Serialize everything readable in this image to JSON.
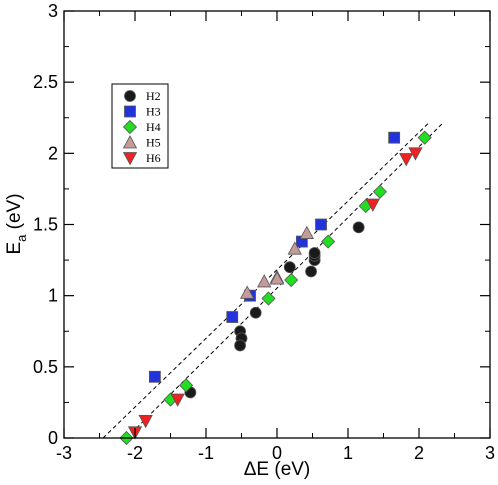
{
  "chart_data": {
    "type": "scatter",
    "xlabel": "ΔE (eV)",
    "ylabel_main": "E",
    "ylabel_sub": "a",
    "ylabel_unit": " (eV)",
    "xlim": [
      -3,
      3
    ],
    "ylim": [
      0,
      3
    ],
    "xticks": [
      -3,
      -2,
      -1,
      0,
      1,
      2,
      3
    ],
    "xtick_labels": [
      "-3",
      "-2",
      "-1",
      "0",
      "1",
      "2",
      "3"
    ],
    "yticks": [
      0,
      0.5,
      1,
      1.5,
      2,
      2.5,
      3
    ],
    "ytick_labels": [
      "0",
      "0.5",
      "1",
      "1.5",
      "2",
      "2.5",
      "3"
    ],
    "grid": false,
    "legend_position": "top-left",
    "series": [
      {
        "name": "H2",
        "marker": "circle",
        "color": "#1a1a1a",
        "x": [
          -1.22,
          -0.52,
          -0.5,
          -0.52,
          -0.3,
          0.18,
          0.48,
          0.53,
          0.53,
          0.53,
          1.15
        ],
        "y": [
          0.32,
          0.75,
          0.7,
          0.65,
          0.88,
          1.2,
          1.17,
          1.25,
          1.28,
          1.3,
          1.48
        ]
      },
      {
        "name": "H3",
        "marker": "square",
        "color": "#2233dd",
        "x": [
          -1.72,
          -0.63,
          -0.38,
          0.35,
          0.62,
          1.65
        ],
        "y": [
          0.43,
          0.85,
          1.0,
          1.38,
          1.5,
          2.11
        ]
      },
      {
        "name": "H4",
        "marker": "diamond",
        "color": "#22dd22",
        "x": [
          -2.12,
          -1.5,
          -1.28,
          -0.12,
          0.2,
          0.72,
          1.25,
          1.45,
          2.08
        ],
        "y": [
          0.0,
          0.27,
          0.37,
          0.98,
          1.11,
          1.38,
          1.63,
          1.73,
          2.11
        ]
      },
      {
        "name": "H5",
        "marker": "triangle-up",
        "color": "#c49a9a",
        "x": [
          -0.42,
          -0.18,
          0.0,
          0.0,
          0.25,
          0.42
        ],
        "y": [
          1.02,
          1.1,
          1.13,
          1.12,
          1.33,
          1.44
        ]
      },
      {
        "name": "H6",
        "marker": "triangle-down",
        "color": "#ee2222",
        "x": [
          -2.0,
          -1.85,
          -1.4,
          1.35,
          1.82,
          1.95
        ],
        "y": [
          0.04,
          0.12,
          0.27,
          1.64,
          1.96,
          2.0
        ]
      }
    ],
    "fit_lines": [
      {
        "style": "dashed",
        "x1": -2.45,
        "y1": 0.0,
        "x2": 2.15,
        "y2": 2.22
      },
      {
        "style": "dashed",
        "x1": -2.12,
        "y1": 0.0,
        "x2": 2.35,
        "y2": 2.22
      }
    ]
  }
}
